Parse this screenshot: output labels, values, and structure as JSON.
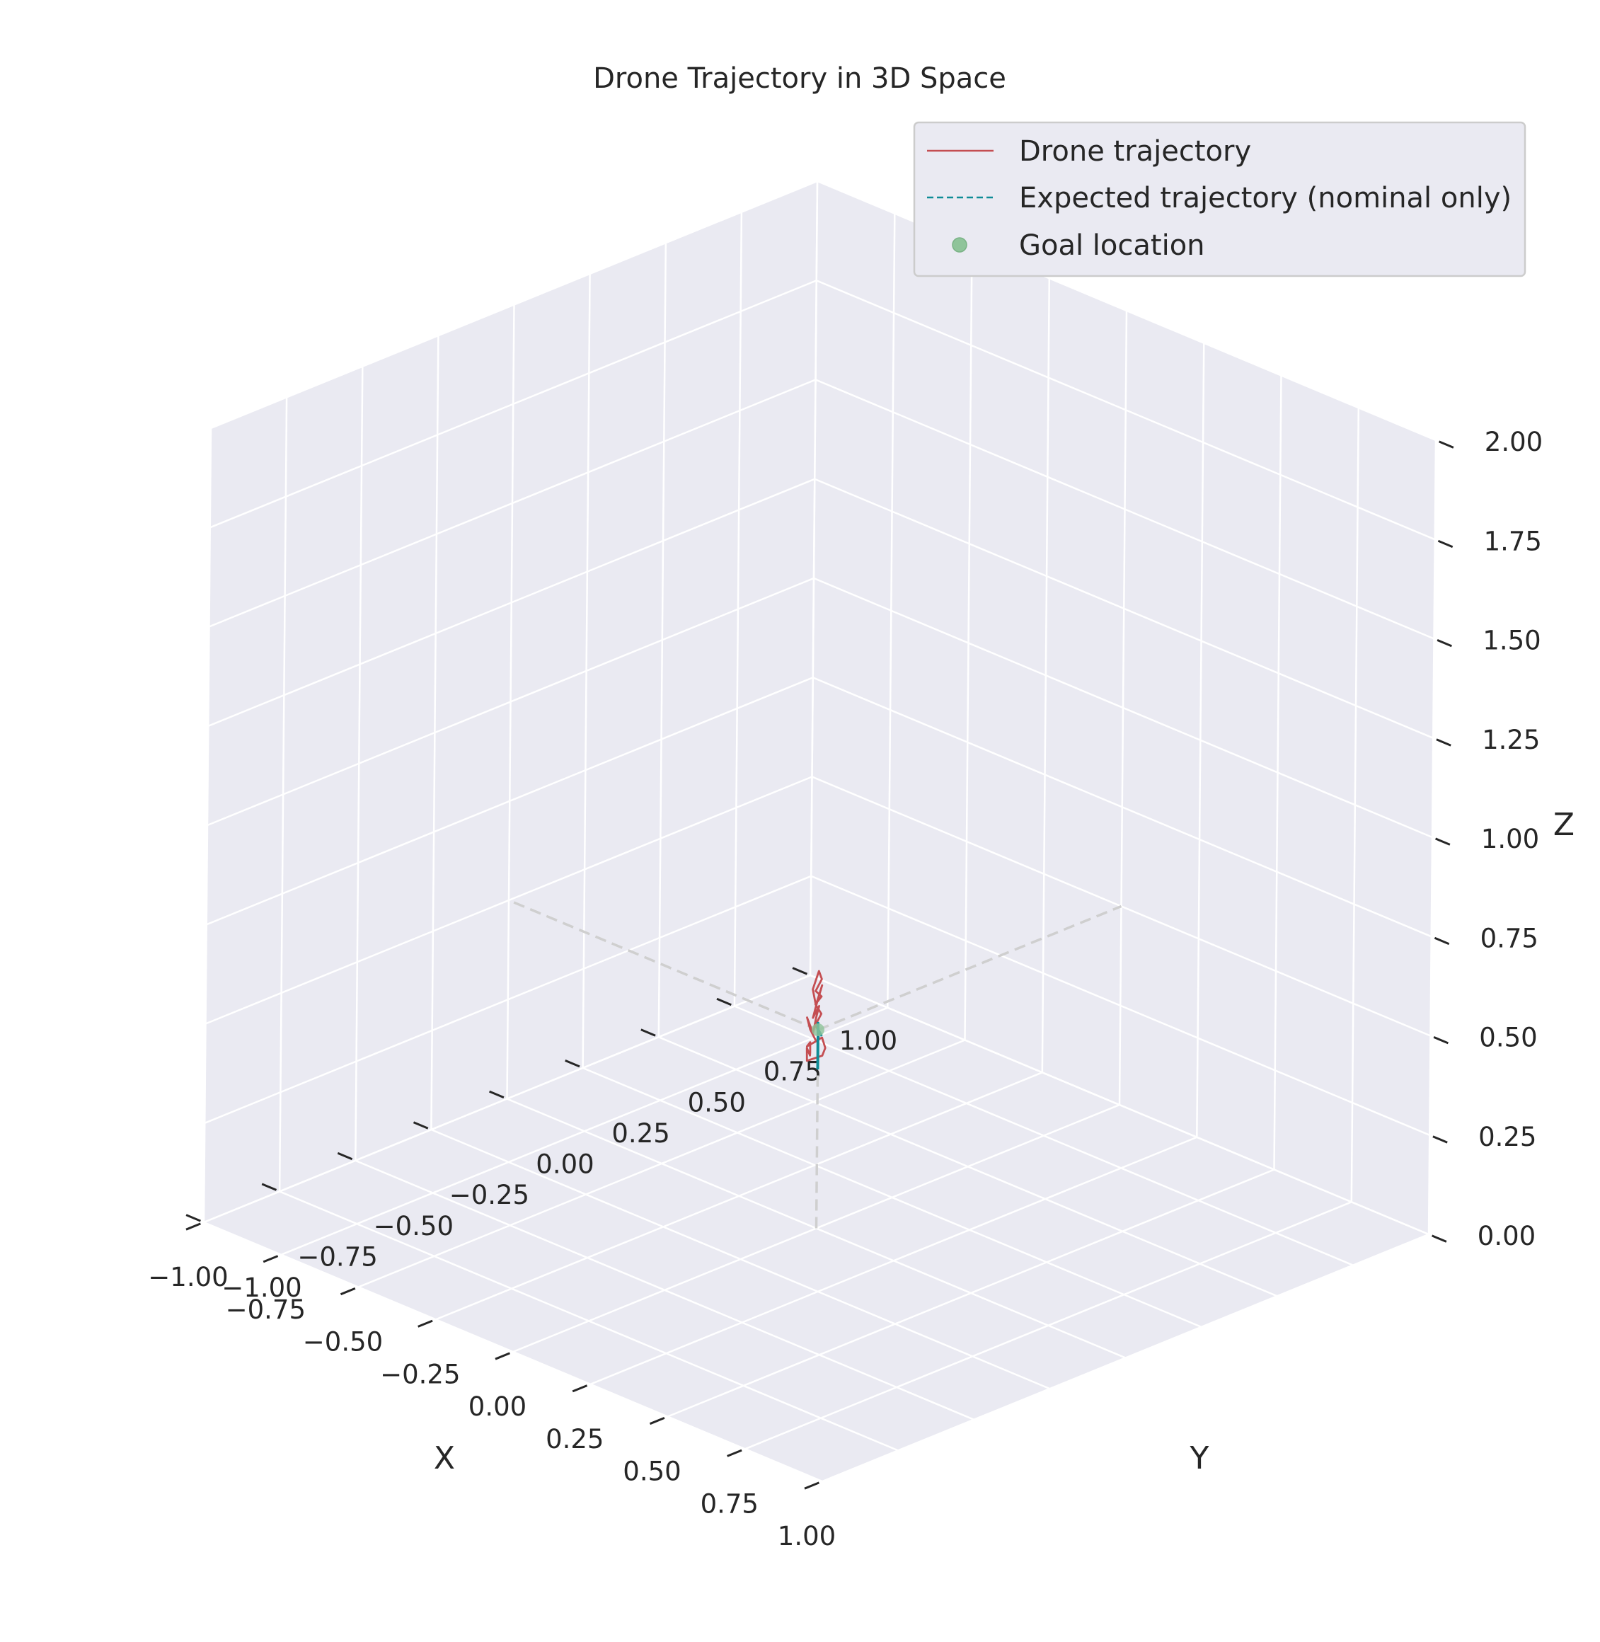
{
  "chart_data": {
    "type": "line",
    "projection": "3d",
    "title": "Drone Trajectory in 3D Space",
    "xlabel": "X",
    "ylabel": "Y",
    "zlabel": "Z",
    "xlim": [
      -1.0,
      1.0
    ],
    "ylim": [
      -1.0,
      1.0
    ],
    "zlim": [
      0.0,
      2.0
    ],
    "grid": true,
    "legend_position": "top-right",
    "x_ticks": [
      "−1.00",
      "−0.75",
      "−0.50",
      "−0.25",
      "0.00",
      "0.25",
      "0.50",
      "0.75",
      "1.00"
    ],
    "y_ticks": [
      "−1.00",
      "−0.75",
      "−0.50",
      "−0.25",
      "0.00",
      "0.25",
      "0.50",
      "0.75",
      "1.00"
    ],
    "z_ticks": [
      "0.00",
      "0.25",
      "0.50",
      "0.75",
      "1.00",
      "1.25",
      "1.50",
      "1.75",
      "2.00"
    ],
    "legend": [
      {
        "label": "Drone trajectory",
        "style": "line"
      },
      {
        "label": "Expected trajectory (nominal only)",
        "style": "dashed"
      },
      {
        "label": "Goal location",
        "style": "marker"
      }
    ],
    "colors": {
      "drone": "#c44e52",
      "expected": "#0d8c96",
      "goal": "#8fc49a",
      "reference_axes": "#cfcfcf",
      "pane": "#eaeaf2"
    },
    "series": [
      {
        "name": "Drone trajectory",
        "x": [
          0.0,
          0.01,
          0.02,
          0.02,
          0.03,
          0.03,
          0.04,
          0.05,
          0.05,
          0.07,
          0.08,
          0.09,
          0.1,
          0.11,
          0.12,
          0.13,
          0.12,
          0.14,
          0.15,
          0.14,
          0.16,
          0.17,
          0.15,
          0.13,
          0.15,
          0.17,
          0.16,
          0.13,
          0.1,
          0.07,
          0.05,
          0.03,
          0.02,
          0.01
        ],
        "y": [
          0.0,
          -0.02,
          -0.01,
          -0.03,
          -0.02,
          -0.04,
          -0.03,
          -0.05,
          -0.07,
          -0.08,
          -0.07,
          -0.1,
          -0.12,
          -0.11,
          -0.13,
          -0.15,
          -0.16,
          -0.17,
          -0.16,
          -0.18,
          -0.19,
          -0.2,
          -0.18,
          -0.17,
          -0.19,
          -0.16,
          -0.14,
          -0.12,
          -0.1,
          -0.07,
          -0.05,
          -0.03,
          -0.02,
          -0.01
        ],
        "z": [
          0.5,
          0.52,
          0.55,
          0.58,
          0.6,
          0.62,
          0.65,
          0.68,
          0.64,
          0.61,
          0.66,
          0.62,
          0.6,
          0.63,
          0.61,
          0.58,
          0.62,
          0.6,
          0.57,
          0.56,
          0.58,
          0.56,
          0.54,
          0.55,
          0.53,
          0.54,
          0.55,
          0.56,
          0.54,
          0.53,
          0.52,
          0.51,
          0.5,
          0.5
        ]
      },
      {
        "name": "Expected trajectory (nominal only)",
        "x": [
          0.0,
          0.0,
          0.0,
          0.01,
          0.0,
          -0.01,
          0.0,
          0.01,
          0.0
        ],
        "y": [
          0.0,
          0.0,
          0.0,
          -0.01,
          0.0,
          0.01,
          0.0,
          0.0,
          0.0
        ],
        "z": [
          0.4,
          0.44,
          0.47,
          0.49,
          0.5,
          0.51,
          0.5,
          0.49,
          0.5
        ]
      },
      {
        "name": "Goal location",
        "x": [
          0.0
        ],
        "y": [
          0.0
        ],
        "z": [
          0.5
        ]
      }
    ],
    "reference_lines": [
      {
        "from": [
          0,
          0,
          0
        ],
        "to": [
          0,
          0,
          0.5
        ]
      },
      {
        "from": [
          0,
          0,
          0.5
        ],
        "to": [
          -1.0,
          0,
          0.5
        ]
      },
      {
        "from": [
          0,
          0,
          0.5
        ],
        "to": [
          0,
          1.0,
          0.5
        ]
      }
    ]
  }
}
